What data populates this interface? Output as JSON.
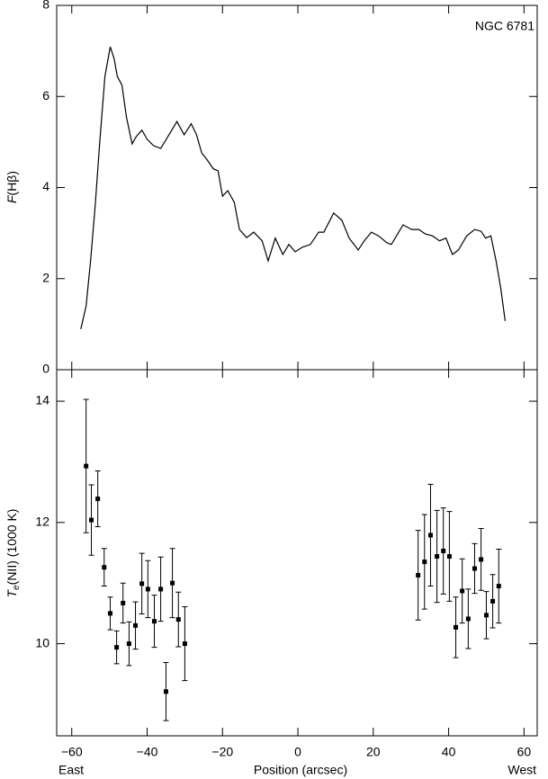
{
  "chart_data": [
    {
      "type": "line",
      "annotation": "NGC 6781",
      "ylabel": [
        "F",
        "(Hβ)"
      ],
      "x": [
        -57.6,
        -56.2,
        -55,
        -53.8,
        -52.6,
        -51.2,
        -49.8,
        -48.8,
        -47.9,
        -46.7,
        -45.5,
        -44,
        -42.9,
        -41.4,
        -40,
        -38.3,
        -36.4,
        -34.5,
        -32.1,
        -30.2,
        -28.3,
        -26.9,
        -25.5,
        -24,
        -22.4,
        -21.2,
        -20,
        -18.6,
        -16.9,
        -15.5,
        -13.6,
        -11.7,
        -9.5,
        -7.9,
        -6,
        -4,
        -2.4,
        -0.7,
        1.2,
        3.3,
        5.5,
        6.9,
        9.5,
        11.7,
        13.6,
        16,
        17.6,
        19.5,
        21.4,
        23.6,
        24.8,
        27.9,
        30.2,
        32.1,
        33.8,
        35.7,
        37.6,
        39.3,
        41,
        42.6,
        44.8,
        46.9,
        48.6,
        49.8,
        51.2,
        52.6,
        53.8,
        55
      ],
      "values": [
        0.89,
        1.4,
        2.4,
        3.58,
        4.96,
        6.44,
        7.09,
        6.84,
        6.44,
        6.25,
        5.55,
        4.96,
        5.12,
        5.26,
        5.06,
        4.92,
        4.86,
        5.12,
        5.45,
        5.16,
        5.4,
        5.16,
        4.76,
        4.6,
        4.41,
        4.37,
        3.81,
        3.93,
        3.68,
        3.08,
        2.9,
        3.02,
        2.83,
        2.39,
        2.89,
        2.53,
        2.75,
        2.59,
        2.69,
        2.75,
        3.02,
        3.02,
        3.44,
        3.28,
        2.89,
        2.63,
        2.83,
        3.02,
        2.94,
        2.79,
        2.75,
        3.18,
        3.08,
        3.08,
        2.98,
        2.94,
        2.83,
        2.89,
        2.53,
        2.63,
        2.94,
        3.08,
        3.04,
        2.89,
        2.94,
        2.39,
        1.8,
        1.07
      ],
      "color": "#000000",
      "xlim": [
        -64,
        63.5
      ],
      "xticks": [
        -60,
        -40,
        -20,
        0,
        20,
        40,
        60
      ],
      "ylim": [
        0,
        8
      ],
      "yticks": [
        0,
        2,
        4,
        6,
        8
      ]
    },
    {
      "type": "scatter",
      "ylabel": [
        "T",
        "e",
        "(NII) (1000 K)"
      ],
      "xlabel": "Position (arcsec)",
      "left_label": "East",
      "right_label": "West",
      "x": [
        -56.2,
        -54.8,
        -53.1,
        -51.4,
        -49.8,
        -48.1,
        -46.4,
        -44.8,
        -43.1,
        -41.4,
        -39.8,
        -38.1,
        -36.4,
        -35,
        -33.3,
        -31.7,
        -30,
        31.9,
        33.6,
        35.2,
        36.9,
        38.6,
        40.2,
        41.9,
        43.6,
        45.2,
        46.9,
        48.6,
        50,
        51.7,
        53.3
      ],
      "values": [
        12.93,
        12.04,
        12.39,
        11.26,
        10.5,
        9.94,
        10.67,
        10.0,
        10.3,
        10.99,
        10.9,
        10.37,
        10.9,
        9.21,
        11.0,
        10.4,
        10.0,
        11.13,
        11.35,
        11.79,
        11.44,
        11.53,
        11.44,
        10.27,
        10.87,
        10.41,
        11.24,
        11.39,
        10.47,
        10.7,
        10.95
      ],
      "errors": [
        1.1,
        0.58,
        0.46,
        0.31,
        0.27,
        0.27,
        0.33,
        0.36,
        0.39,
        0.5,
        0.47,
        0.43,
        0.53,
        0.48,
        0.57,
        0.45,
        0.61,
        0.74,
        0.78,
        0.84,
        0.76,
        0.71,
        0.74,
        0.5,
        0.53,
        0.49,
        0.41,
        0.51,
        0.39,
        0.44,
        0.61
      ],
      "color": "#000000",
      "xlim": [
        -64,
        63.5
      ],
      "xticks": [
        {
          "value": -60,
          "label": "−60"
        },
        {
          "value": -40,
          "label": "−40"
        },
        {
          "value": -20,
          "label": "−20"
        },
        0,
        20,
        40,
        60
      ],
      "ylim": [
        8.48,
        14.52
      ],
      "yticks": [
        10,
        12,
        14
      ]
    }
  ]
}
